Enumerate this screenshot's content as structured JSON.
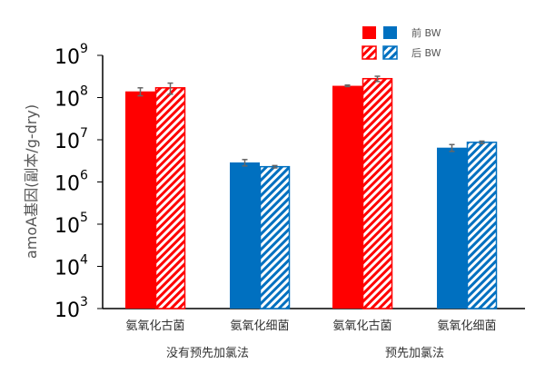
{
  "chart_data": {
    "type": "bar",
    "title": "",
    "ylabel": "amoA基因(副本/g-dry)",
    "yscale": "log",
    "ylim": [
      1000,
      1000000000
    ],
    "ytick_exponents": [
      "3",
      "4",
      "5",
      "6",
      "7",
      "8",
      "9"
    ],
    "ytick_base": "10",
    "categories": [
      "氨氧化古菌",
      "氨氧化细菌",
      "氨氧化古菌",
      "氨氧化细菌"
    ],
    "groups": [
      {
        "label": "没有预先加氯法",
        "categories": [
          0,
          1
        ]
      },
      {
        "label": "预先加氯法",
        "categories": [
          2,
          3
        ]
      }
    ],
    "series": [
      {
        "name": "前 BW",
        "pattern": "solid",
        "values": [
          140000000,
          2900000,
          190000000,
          6500000
        ],
        "errors": [
          30000000,
          500000,
          8000000,
          1200000
        ]
      },
      {
        "name": "后 BW",
        "pattern": "hatched",
        "values": [
          170000000,
          2300000,
          280000000,
          8700000
        ],
        "errors": [
          50000000,
          150000,
          40000000,
          600000
        ]
      }
    ],
    "category_colors": [
      "#FF0000",
      "#0070C0",
      "#FF0000",
      "#0070C0"
    ],
    "legend": {
      "placement": "top-right",
      "entries": [
        "前 BW",
        "后 BW"
      ]
    },
    "grid": false
  }
}
